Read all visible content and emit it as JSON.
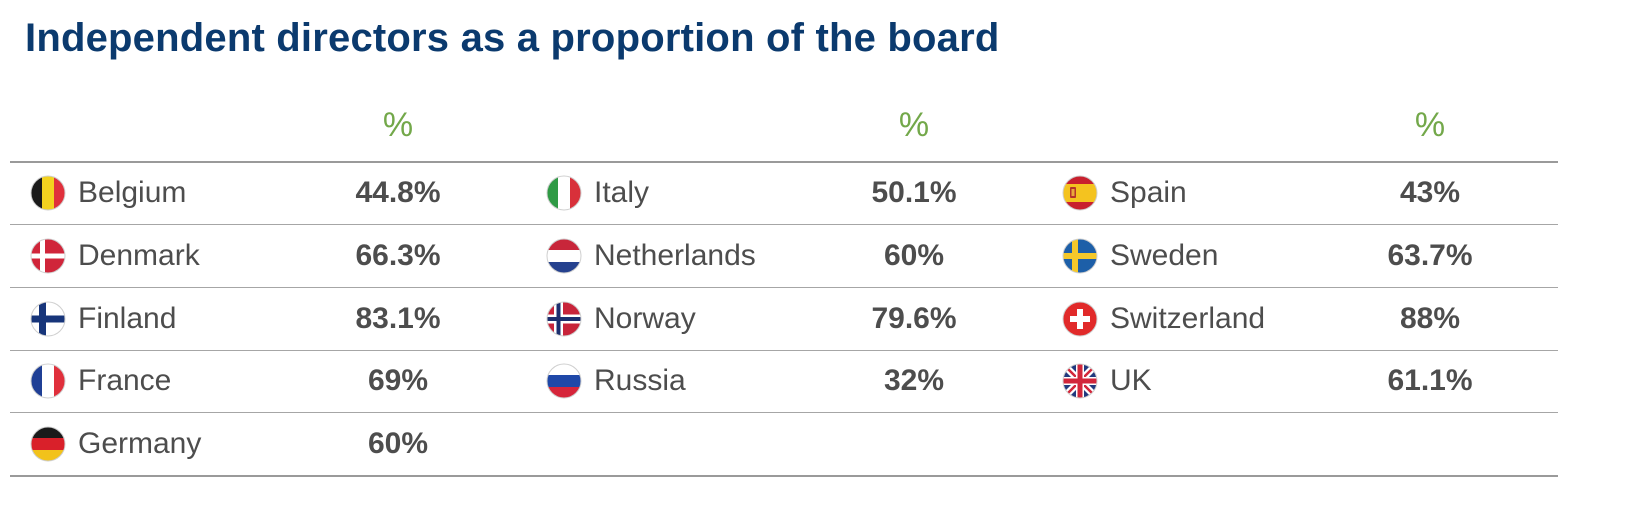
{
  "chart_data": {
    "type": "table",
    "title": "Independent directors as a proportion of the board",
    "column_header": "%",
    "columns": [
      {
        "rows": [
          {
            "country": "Belgium",
            "value": "44.8%",
            "flag": "belgium-flag-icon"
          },
          {
            "country": "Denmark",
            "value": "66.3%",
            "flag": "denmark-flag-icon"
          },
          {
            "country": "Finland",
            "value": "83.1%",
            "flag": "finland-flag-icon"
          },
          {
            "country": "France",
            "value": "69%",
            "flag": "france-flag-icon"
          },
          {
            "country": "Germany",
            "value": "60%",
            "flag": "germany-flag-icon"
          }
        ]
      },
      {
        "rows": [
          {
            "country": "Italy",
            "value": "50.1%",
            "flag": "italy-flag-icon"
          },
          {
            "country": "Netherlands",
            "value": "60%",
            "flag": "netherlands-flag-icon"
          },
          {
            "country": "Norway",
            "value": "79.6%",
            "flag": "norway-flag-icon"
          },
          {
            "country": "Russia",
            "value": "32%",
            "flag": "russia-flag-icon"
          }
        ]
      },
      {
        "rows": [
          {
            "country": "Spain",
            "value": "43%",
            "flag": "spain-flag-icon"
          },
          {
            "country": "Sweden",
            "value": "63.7%",
            "flag": "sweden-flag-icon"
          },
          {
            "country": "Switzerland",
            "value": "88%",
            "flag": "switzerland-flag-icon"
          },
          {
            "country": "UK",
            "value": "61.1%",
            "flag": "uk-flag-icon"
          }
        ]
      }
    ]
  },
  "colors": {
    "title": "#0b3a6e",
    "header": "#73a84a",
    "text": "#4d4d4d",
    "rule": "#9a9a9a"
  }
}
